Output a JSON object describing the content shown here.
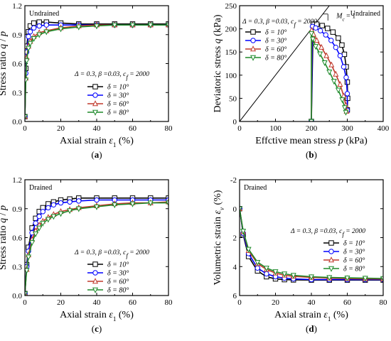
{
  "chart_data": [
    {
      "id": "a",
      "type": "line",
      "panel_label": "(a)",
      "xlabel": "Axial strain ε1 (%)",
      "ylabel": "Stress ratio q / p",
      "xlim": [
        0,
        80
      ],
      "ylim": [
        0,
        1.2
      ],
      "xticks": [
        "0",
        "20",
        "40",
        "60",
        "80"
      ],
      "yticks": [
        "0.0",
        "0.3",
        "0.6",
        "0.9",
        "1.2"
      ],
      "annotation": "Undrained",
      "params_text": "Δ = 0.3, β =0.03, cf = 2000",
      "legend_position": "lower-right",
      "series": [
        {
          "name": "δ = 10°",
          "color": "#000000",
          "marker": "square",
          "x": [
            0,
            0.5,
            1,
            2,
            3,
            5,
            8,
            12,
            20,
            30,
            40,
            50,
            60,
            70,
            80
          ],
          "y": [
            0.05,
            0.55,
            0.78,
            0.93,
            0.99,
            1.02,
            1.03,
            1.03,
            1.02,
            1.01,
            1.01,
            1.01,
            1.01,
            1.01,
            1.01
          ]
        },
        {
          "name": "δ = 30°",
          "color": "#0000ff",
          "marker": "circle",
          "x": [
            0,
            0.5,
            1,
            2,
            3,
            5,
            8,
            12,
            20,
            30,
            40,
            50,
            60,
            70,
            80
          ],
          "y": [
            0.05,
            0.5,
            0.72,
            0.88,
            0.93,
            0.97,
            0.99,
            1.0,
            1.0,
            1.0,
            1.0,
            1.0,
            1.0,
            1.0,
            1.0
          ]
        },
        {
          "name": "δ = 60°",
          "color": "#c0392b",
          "marker": "triangle",
          "x": [
            0,
            0.5,
            1,
            2,
            3,
            5,
            8,
            12,
            20,
            30,
            40,
            50,
            60,
            70,
            80
          ],
          "y": [
            0.05,
            0.45,
            0.66,
            0.78,
            0.83,
            0.88,
            0.92,
            0.94,
            0.97,
            0.99,
            1.0,
            1.0,
            1.0,
            1.0,
            1.0
          ]
        },
        {
          "name": "δ = 80°",
          "color": "#1e8a2a",
          "marker": "triangle-down",
          "x": [
            0,
            0.5,
            1,
            2,
            3,
            5,
            8,
            12,
            20,
            30,
            40,
            50,
            60,
            70,
            80
          ],
          "y": [
            0.05,
            0.43,
            0.63,
            0.76,
            0.81,
            0.86,
            0.9,
            0.93,
            0.96,
            0.98,
            0.99,
            1.0,
            1.0,
            1.0,
            1.0
          ]
        }
      ]
    },
    {
      "id": "b",
      "type": "line",
      "panel_label": "(b)",
      "xlabel": "Effctive mean stress p (kPa)",
      "ylabel": "Deviatoric stress q (kPa)",
      "xlim": [
        0,
        400
      ],
      "ylim": [
        0,
        250
      ],
      "xticks": [
        "0",
        "100",
        "200",
        "300",
        "400"
      ],
      "yticks": [
        "0",
        "50",
        "100",
        "150",
        "200",
        "250"
      ],
      "annotation": "Undrained",
      "params_text": "Δ = 0.3, β =0.03, cf = 2000",
      "csl_label": "Mc = 1",
      "csl_slope": 1,
      "legend_position": "upper-left",
      "series": [
        {
          "name": "δ = 10°",
          "color": "#000000",
          "marker": "square",
          "x": [
            200,
            205,
            215,
            230,
            245,
            260,
            275,
            285,
            292,
            297,
            300,
            301,
            300
          ],
          "y": [
            0,
            210,
            210,
            207,
            201,
            193,
            180,
            165,
            145,
            118,
            85,
            50,
            25
          ]
        },
        {
          "name": "δ = 30°",
          "color": "#0000ff",
          "marker": "circle",
          "x": [
            200,
            203,
            212,
            225,
            240,
            255,
            268,
            280,
            290,
            297,
            300,
            300
          ],
          "y": [
            0,
            205,
            202,
            196,
            187,
            175,
            160,
            142,
            118,
            95,
            60,
            24
          ]
        },
        {
          "name": "δ = 60°",
          "color": "#c0392b",
          "marker": "triangle",
          "x": [
            200,
            201,
            206,
            215,
            228,
            242,
            256,
            268,
            280,
            290,
            296,
            298
          ],
          "y": [
            0,
            197,
            188,
            175,
            160,
            142,
            122,
            102,
            80,
            55,
            35,
            22
          ]
        },
        {
          "name": "δ = 80°",
          "color": "#1e8a2a",
          "marker": "triangle-down",
          "x": [
            200,
            200,
            204,
            212,
            224,
            237,
            250,
            263,
            275,
            286,
            293,
            296
          ],
          "y": [
            0,
            190,
            178,
            162,
            146,
            127,
            107,
            87,
            68,
            47,
            30,
            20
          ]
        }
      ]
    },
    {
      "id": "c",
      "type": "line",
      "panel_label": "(c)",
      "xlabel": "Axial strain ε1 (%)",
      "ylabel": "Stress ratio q / p",
      "xlim": [
        0,
        80
      ],
      "ylim": [
        0,
        1.2
      ],
      "xticks": [
        "0",
        "20",
        "40",
        "60",
        "80"
      ],
      "yticks": [
        "0.0",
        "0.3",
        "0.6",
        "0.9",
        "1.2"
      ],
      "annotation": "Drained",
      "params_text": "Δ = 0.3, β =0.03, cf = 2000",
      "legend_position": "lower-right",
      "series": [
        {
          "name": "δ = 10°",
          "color": "#000000",
          "marker": "square",
          "x": [
            0,
            1,
            2,
            4,
            6,
            8,
            10,
            13,
            16,
            20,
            25,
            30,
            40,
            50,
            60,
            70,
            80
          ],
          "y": [
            0.02,
            0.32,
            0.5,
            0.7,
            0.8,
            0.87,
            0.91,
            0.95,
            0.97,
            0.99,
            1.0,
            1.01,
            1.01,
            1.01,
            1.01,
            1.01,
            1.01
          ]
        },
        {
          "name": "δ = 30°",
          "color": "#0000ff",
          "marker": "circle",
          "x": [
            0,
            1,
            2,
            4,
            6,
            8,
            10,
            13,
            16,
            20,
            25,
            30,
            40,
            50,
            60,
            70,
            80
          ],
          "y": [
            0.02,
            0.3,
            0.46,
            0.65,
            0.75,
            0.82,
            0.87,
            0.91,
            0.94,
            0.96,
            0.97,
            0.98,
            0.99,
            0.99,
            0.99,
            0.99,
            0.99
          ]
        },
        {
          "name": "δ = 60°",
          "color": "#c0392b",
          "marker": "triangle",
          "x": [
            0,
            1,
            2,
            4,
            6,
            8,
            10,
            13,
            16,
            20,
            25,
            30,
            40,
            50,
            60,
            70,
            80
          ],
          "y": [
            0.02,
            0.27,
            0.42,
            0.58,
            0.67,
            0.73,
            0.77,
            0.81,
            0.84,
            0.87,
            0.89,
            0.91,
            0.93,
            0.95,
            0.96,
            0.96,
            0.97
          ]
        },
        {
          "name": "δ = 80°",
          "color": "#1e8a2a",
          "marker": "triangle-down",
          "x": [
            0,
            1,
            2,
            4,
            6,
            8,
            10,
            13,
            16,
            20,
            25,
            30,
            40,
            50,
            60,
            70,
            80
          ],
          "y": [
            0.02,
            0.26,
            0.4,
            0.55,
            0.64,
            0.7,
            0.75,
            0.79,
            0.82,
            0.85,
            0.88,
            0.9,
            0.92,
            0.94,
            0.95,
            0.96,
            0.96
          ]
        }
      ]
    },
    {
      "id": "d",
      "type": "line",
      "panel_label": "(d)",
      "xlabel": "Axial strain ε1 (%)",
      "ylabel": "Volumetric strain εv (%)",
      "xlim": [
        0,
        80
      ],
      "ylim": [
        -2,
        6
      ],
      "y_inverted": true,
      "xticks": [
        "0",
        "20",
        "40",
        "60",
        "80"
      ],
      "yticks": [
        "-2",
        "0",
        "2",
        "4",
        "6"
      ],
      "annotation": "Drained",
      "params_text": "Δ = 0.3, β =0.03, cf = 2000",
      "legend_position": "right",
      "series": [
        {
          "name": "δ = 10°",
          "color": "#000000",
          "marker": "square",
          "x": [
            0,
            2,
            5,
            10,
            15,
            20,
            25,
            30,
            40,
            50,
            60,
            70,
            80
          ],
          "y": [
            0,
            1.8,
            3.3,
            4.3,
            4.7,
            4.85,
            4.9,
            4.92,
            4.93,
            4.93,
            4.93,
            4.93,
            4.93
          ]
        },
        {
          "name": "δ = 30°",
          "color": "#0000ff",
          "marker": "circle",
          "x": [
            0,
            2,
            5,
            10,
            15,
            20,
            25,
            30,
            40,
            50,
            60,
            70,
            80
          ],
          "y": [
            0,
            1.7,
            3.1,
            4.1,
            4.5,
            4.7,
            4.8,
            4.85,
            4.9,
            4.9,
            4.9,
            4.9,
            4.9
          ]
        },
        {
          "name": "δ = 60°",
          "color": "#c0392b",
          "marker": "triangle",
          "x": [
            0,
            2,
            5,
            10,
            15,
            20,
            25,
            30,
            40,
            50,
            60,
            70,
            80
          ],
          "y": [
            0,
            1.6,
            2.9,
            3.8,
            4.2,
            4.45,
            4.6,
            4.68,
            4.75,
            4.8,
            4.83,
            4.85,
            4.86
          ]
        },
        {
          "name": "δ = 80°",
          "color": "#1e8a2a",
          "marker": "triangle-down",
          "x": [
            0,
            2,
            5,
            10,
            15,
            20,
            25,
            30,
            40,
            50,
            60,
            70,
            80
          ],
          "y": [
            0,
            1.55,
            2.8,
            3.7,
            4.1,
            4.35,
            4.5,
            4.6,
            4.7,
            4.75,
            4.78,
            4.8,
            4.82
          ]
        }
      ]
    }
  ]
}
